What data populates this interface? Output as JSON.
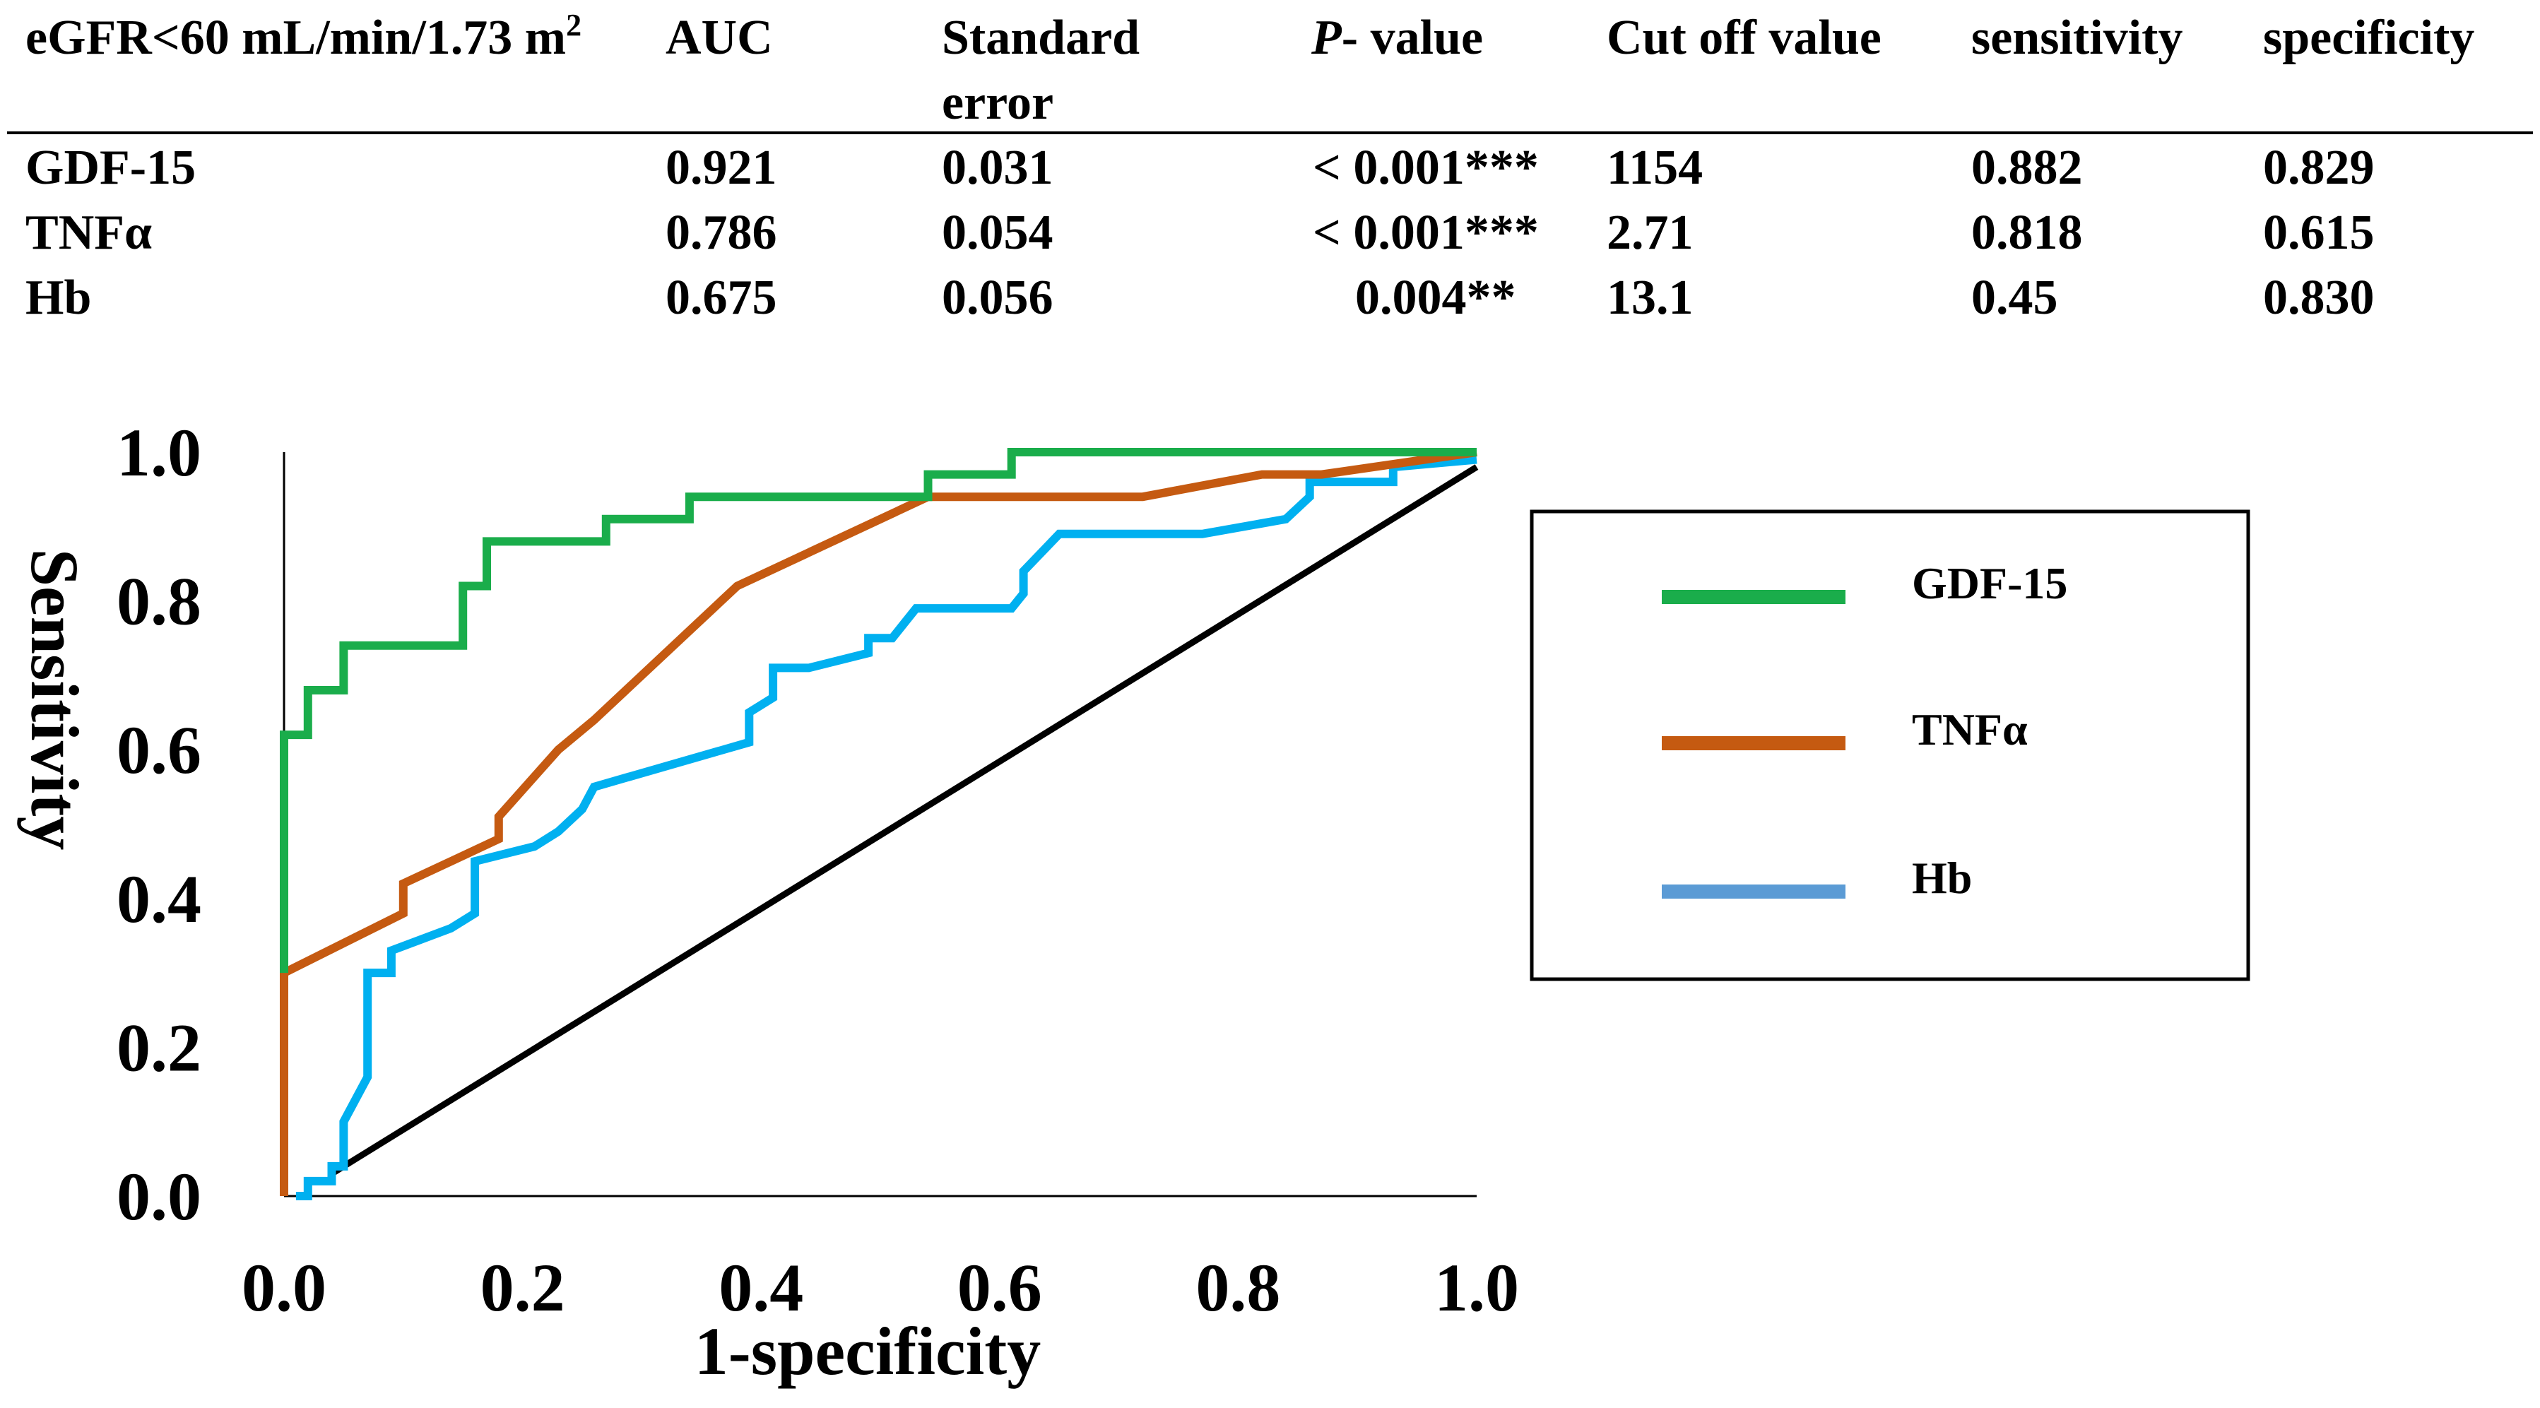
{
  "table": {
    "headers": {
      "criterion_prefix": "eGFR<60 mL/min/1.73 m",
      "criterion_sup": "2",
      "auc": "AUC",
      "se_line1": "Standard",
      "se_line2": "error",
      "p_italic": "P",
      "p_rest": "- value",
      "cutoff": "Cut off value",
      "sensitivity": "sensitivity",
      "specificity": "specificity"
    },
    "rows": [
      {
        "marker": "GDF-15",
        "auc": "0.921",
        "se": "0.031",
        "p": "< 0.001***",
        "cutoff": "1154",
        "sensitivity": "0.882",
        "specificity": "0.829"
      },
      {
        "marker": "TNFα",
        "auc": "0.786",
        "se": "0.054",
        "p": "< 0.001***",
        "cutoff": "2.71",
        "sensitivity": "0.818",
        "specificity": "0.615"
      },
      {
        "marker": "Hb",
        "auc": "0.675",
        "se": "0.056",
        "p": "0.004**",
        "cutoff": "13.1",
        "sensitivity": "0.45",
        "specificity": "0.830"
      }
    ]
  },
  "chart_data": {
    "type": "line",
    "title": "",
    "xlabel": "1-specificity",
    "ylabel": "Sensitivity",
    "xlim": [
      0,
      1
    ],
    "ylim": [
      0,
      1
    ],
    "xticks": [
      "0.0",
      "0.2",
      "0.4",
      "0.6",
      "0.8",
      "1.0"
    ],
    "yticks": [
      "0.0",
      "0.2",
      "0.4",
      "0.6",
      "0.8",
      "1.0"
    ],
    "legend_position": "right",
    "series": [
      {
        "name": "GDF-15",
        "color": "#1aad4b",
        "points": [
          [
            0,
            0.3
          ],
          [
            0,
            0.62
          ],
          [
            0.02,
            0.62
          ],
          [
            0.02,
            0.68
          ],
          [
            0.05,
            0.68
          ],
          [
            0.05,
            0.74
          ],
          [
            0.15,
            0.74
          ],
          [
            0.15,
            0.82
          ],
          [
            0.17,
            0.82
          ],
          [
            0.17,
            0.88
          ],
          [
            0.27,
            0.88
          ],
          [
            0.27,
            0.91
          ],
          [
            0.34,
            0.91
          ],
          [
            0.34,
            0.94
          ],
          [
            0.54,
            0.94
          ],
          [
            0.54,
            0.97
          ],
          [
            0.61,
            0.97
          ],
          [
            0.61,
            1.0
          ],
          [
            1.0,
            1.0
          ]
        ]
      },
      {
        "name": "TNFα",
        "color": "#c55a11",
        "points": [
          [
            0,
            0
          ],
          [
            0,
            0.3
          ],
          [
            0.1,
            0.38
          ],
          [
            0.1,
            0.42
          ],
          [
            0.18,
            0.48
          ],
          [
            0.18,
            0.51
          ],
          [
            0.23,
            0.6
          ],
          [
            0.26,
            0.64
          ],
          [
            0.38,
            0.82
          ],
          [
            0.54,
            0.94
          ],
          [
            0.72,
            0.94
          ],
          [
            0.82,
            0.97
          ],
          [
            0.87,
            0.97
          ],
          [
            1.0,
            1.0
          ]
        ]
      },
      {
        "name": "Hb",
        "color": "#00b0f0",
        "legend_color": "#5b9bd5",
        "points": [
          [
            0.01,
            0
          ],
          [
            0.02,
            0
          ],
          [
            0.02,
            0.02
          ],
          [
            0.04,
            0.02
          ],
          [
            0.04,
            0.04
          ],
          [
            0.05,
            0.04
          ],
          [
            0.05,
            0.1
          ],
          [
            0.07,
            0.16
          ],
          [
            0.07,
            0.3
          ],
          [
            0.09,
            0.3
          ],
          [
            0.09,
            0.33
          ],
          [
            0.14,
            0.36
          ],
          [
            0.16,
            0.38
          ],
          [
            0.16,
            0.45
          ],
          [
            0.21,
            0.47
          ],
          [
            0.23,
            0.49
          ],
          [
            0.25,
            0.52
          ],
          [
            0.26,
            0.55
          ],
          [
            0.39,
            0.61
          ],
          [
            0.39,
            0.65
          ],
          [
            0.41,
            0.67
          ],
          [
            0.41,
            0.71
          ],
          [
            0.44,
            0.71
          ],
          [
            0.49,
            0.73
          ],
          [
            0.49,
            0.75
          ],
          [
            0.51,
            0.75
          ],
          [
            0.53,
            0.79
          ],
          [
            0.61,
            0.79
          ],
          [
            0.62,
            0.81
          ],
          [
            0.62,
            0.84
          ],
          [
            0.65,
            0.89
          ],
          [
            0.77,
            0.89
          ],
          [
            0.84,
            0.91
          ],
          [
            0.86,
            0.94
          ],
          [
            0.86,
            0.96
          ],
          [
            0.93,
            0.96
          ],
          [
            0.93,
            0.98
          ],
          [
            1.0,
            0.99
          ]
        ]
      },
      {
        "name": "reference",
        "color": "#000000",
        "points": [
          [
            0.04,
            0.03
          ],
          [
            1.0,
            0.98
          ]
        ]
      }
    ]
  }
}
